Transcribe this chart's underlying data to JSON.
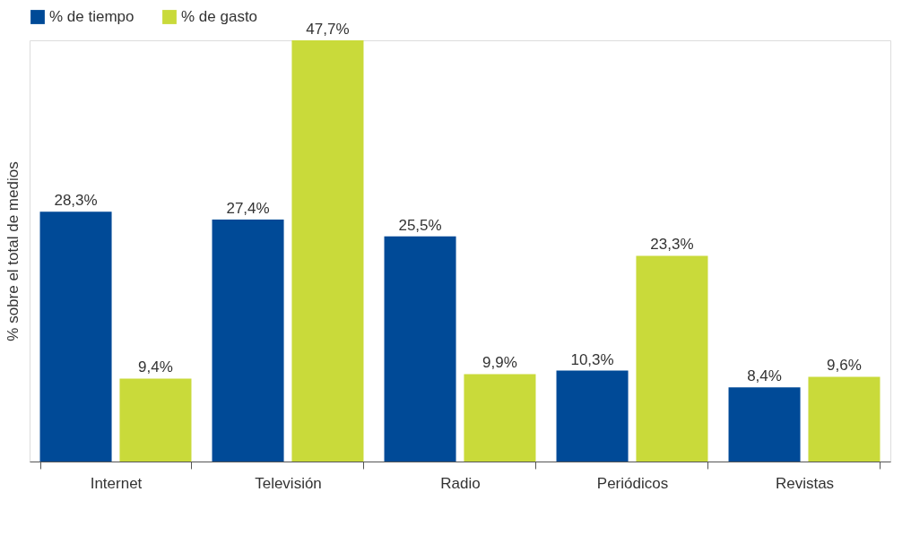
{
  "chart_data": {
    "type": "bar",
    "ylabel": "% sobre el total de medios",
    "categories": [
      "Internet",
      "Televisión",
      "Radio",
      "Periódicos",
      "Revistas"
    ],
    "series": [
      {
        "name": "% de tiempo",
        "color": "#004a97",
        "values": [
          28.3,
          27.4,
          25.5,
          10.3,
          8.4
        ],
        "value_labels": [
          "28,3%",
          "27,4%",
          "25,5%",
          "10,3%",
          "8,4%"
        ]
      },
      {
        "name": "% de gasto",
        "color": "#c9da3a",
        "values": [
          9.4,
          47.7,
          9.9,
          23.3,
          9.6
        ],
        "value_labels": [
          "9,4%",
          "47,7%",
          "9,9%",
          "23,3%",
          "9,6%"
        ]
      }
    ],
    "legend": "top",
    "grid": false,
    "tick_labels": "x"
  }
}
